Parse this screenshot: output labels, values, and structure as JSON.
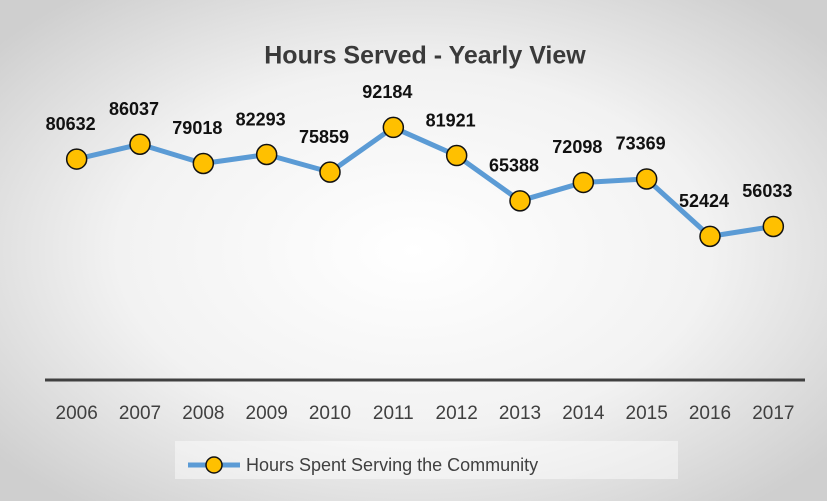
{
  "chart_data": {
    "type": "line",
    "title": "Hours Served - Yearly View",
    "categories": [
      "2006",
      "2007",
      "2008",
      "2009",
      "2010",
      "2011",
      "2012",
      "2013",
      "2014",
      "2015",
      "2016",
      "2017"
    ],
    "series": [
      {
        "name": "Hours Spent Serving the Community",
        "color": "#5b9bd5",
        "marker_color": "#ffc000",
        "values": [
          80632,
          86037,
          79018,
          82293,
          75859,
          92184,
          81921,
          65388,
          72098,
          73369,
          52424,
          56033
        ]
      }
    ],
    "ylim": [
      0,
      100000
    ],
    "legend": "bottom"
  }
}
